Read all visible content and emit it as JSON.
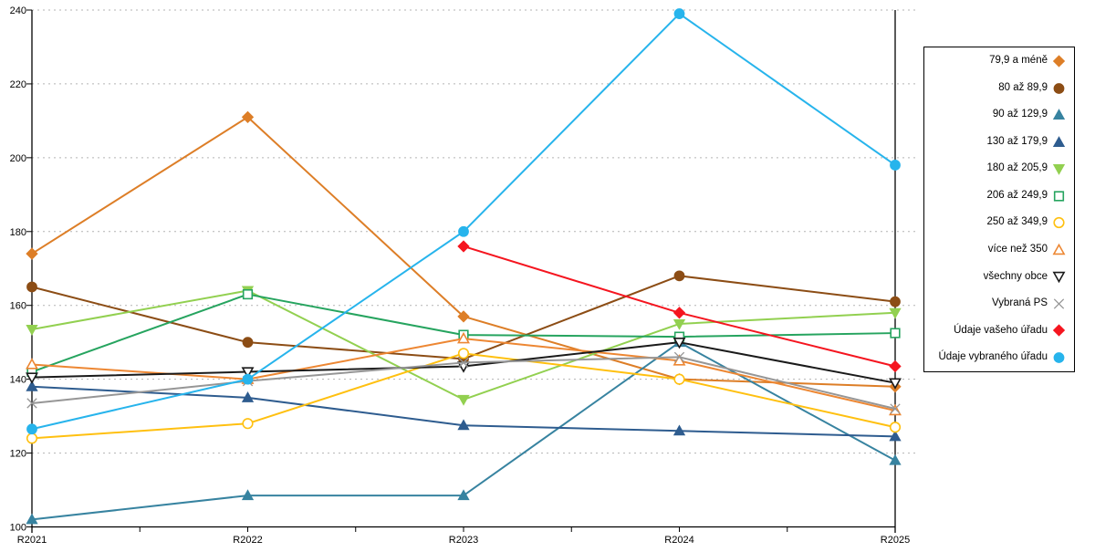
{
  "page": {
    "background": "#FFFFFF"
  },
  "chart_data": {
    "type": "line",
    "title": "",
    "xlabel": "",
    "ylabel": "",
    "ylim": [
      100,
      240
    ],
    "y_tick_step": 20,
    "y_ticks": [
      100,
      120,
      140,
      160,
      180,
      200,
      220,
      240
    ],
    "categories": [
      "R2021",
      "R2022",
      "R2023",
      "R2024",
      "R2025"
    ],
    "grid": "horizontal-dashed",
    "grid_color": "#B3B3B3",
    "axis_color": "#000000",
    "legend_position": "right",
    "series": [
      {
        "name": "79,9 a méně",
        "color": "#DD7E27",
        "marker": "diamond",
        "fill": "solid",
        "values": [
          174,
          211,
          157,
          140,
          138
        ]
      },
      {
        "name": "80 až 89,9",
        "color": "#8C4D15",
        "marker": "circle",
        "fill": "solid",
        "values": [
          165,
          150,
          145.5,
          168,
          161
        ]
      },
      {
        "name": "90 až 129,9",
        "color": "#3783A0",
        "marker": "triangle-up",
        "fill": "solid",
        "values": [
          102,
          108.5,
          108.5,
          150,
          118
        ]
      },
      {
        "name": "130 až 179,9",
        "color": "#2E5C8F",
        "marker": "triangle-up",
        "fill": "solid",
        "values": [
          138,
          135,
          127.5,
          126,
          124.5
        ]
      },
      {
        "name": "180 až 205,9",
        "color": "#92D050",
        "marker": "triangle-down",
        "fill": "solid",
        "values": [
          153.5,
          164,
          134.5,
          155,
          158
        ]
      },
      {
        "name": "206 až 249,9",
        "color": "#26A45F",
        "marker": "square",
        "fill": "open",
        "values": [
          142,
          163,
          152,
          151.5,
          152.5
        ]
      },
      {
        "name": "250 až 349,9",
        "color": "#FFC010",
        "marker": "circle",
        "fill": "open",
        "values": [
          124,
          128,
          147,
          140,
          127
        ]
      },
      {
        "name": "více než 350",
        "color": "#ED8733",
        "marker": "triangle-up",
        "fill": "open",
        "values": [
          144,
          140,
          151,
          145,
          131.5
        ]
      },
      {
        "name": "všechny obce",
        "color": "#1A1A1A",
        "marker": "triangle-down",
        "fill": "open",
        "values": [
          140.5,
          142,
          143.5,
          150,
          139
        ]
      },
      {
        "name": "Vybraná PS",
        "color": "#969696",
        "marker": "x",
        "fill": "line",
        "values": [
          133.5,
          139.5,
          144.5,
          146,
          132
        ]
      },
      {
        "name": "Údaje vašeho úřadu",
        "color": "#F5151F",
        "marker": "diamond",
        "fill": "solid",
        "values": [
          null,
          null,
          176,
          158,
          143.5
        ]
      },
      {
        "name": "Údaje vybraného úřadu",
        "color": "#27B4EC",
        "marker": "circle",
        "fill": "solid",
        "values": [
          126.5,
          140,
          180,
          239,
          198
        ]
      }
    ]
  }
}
